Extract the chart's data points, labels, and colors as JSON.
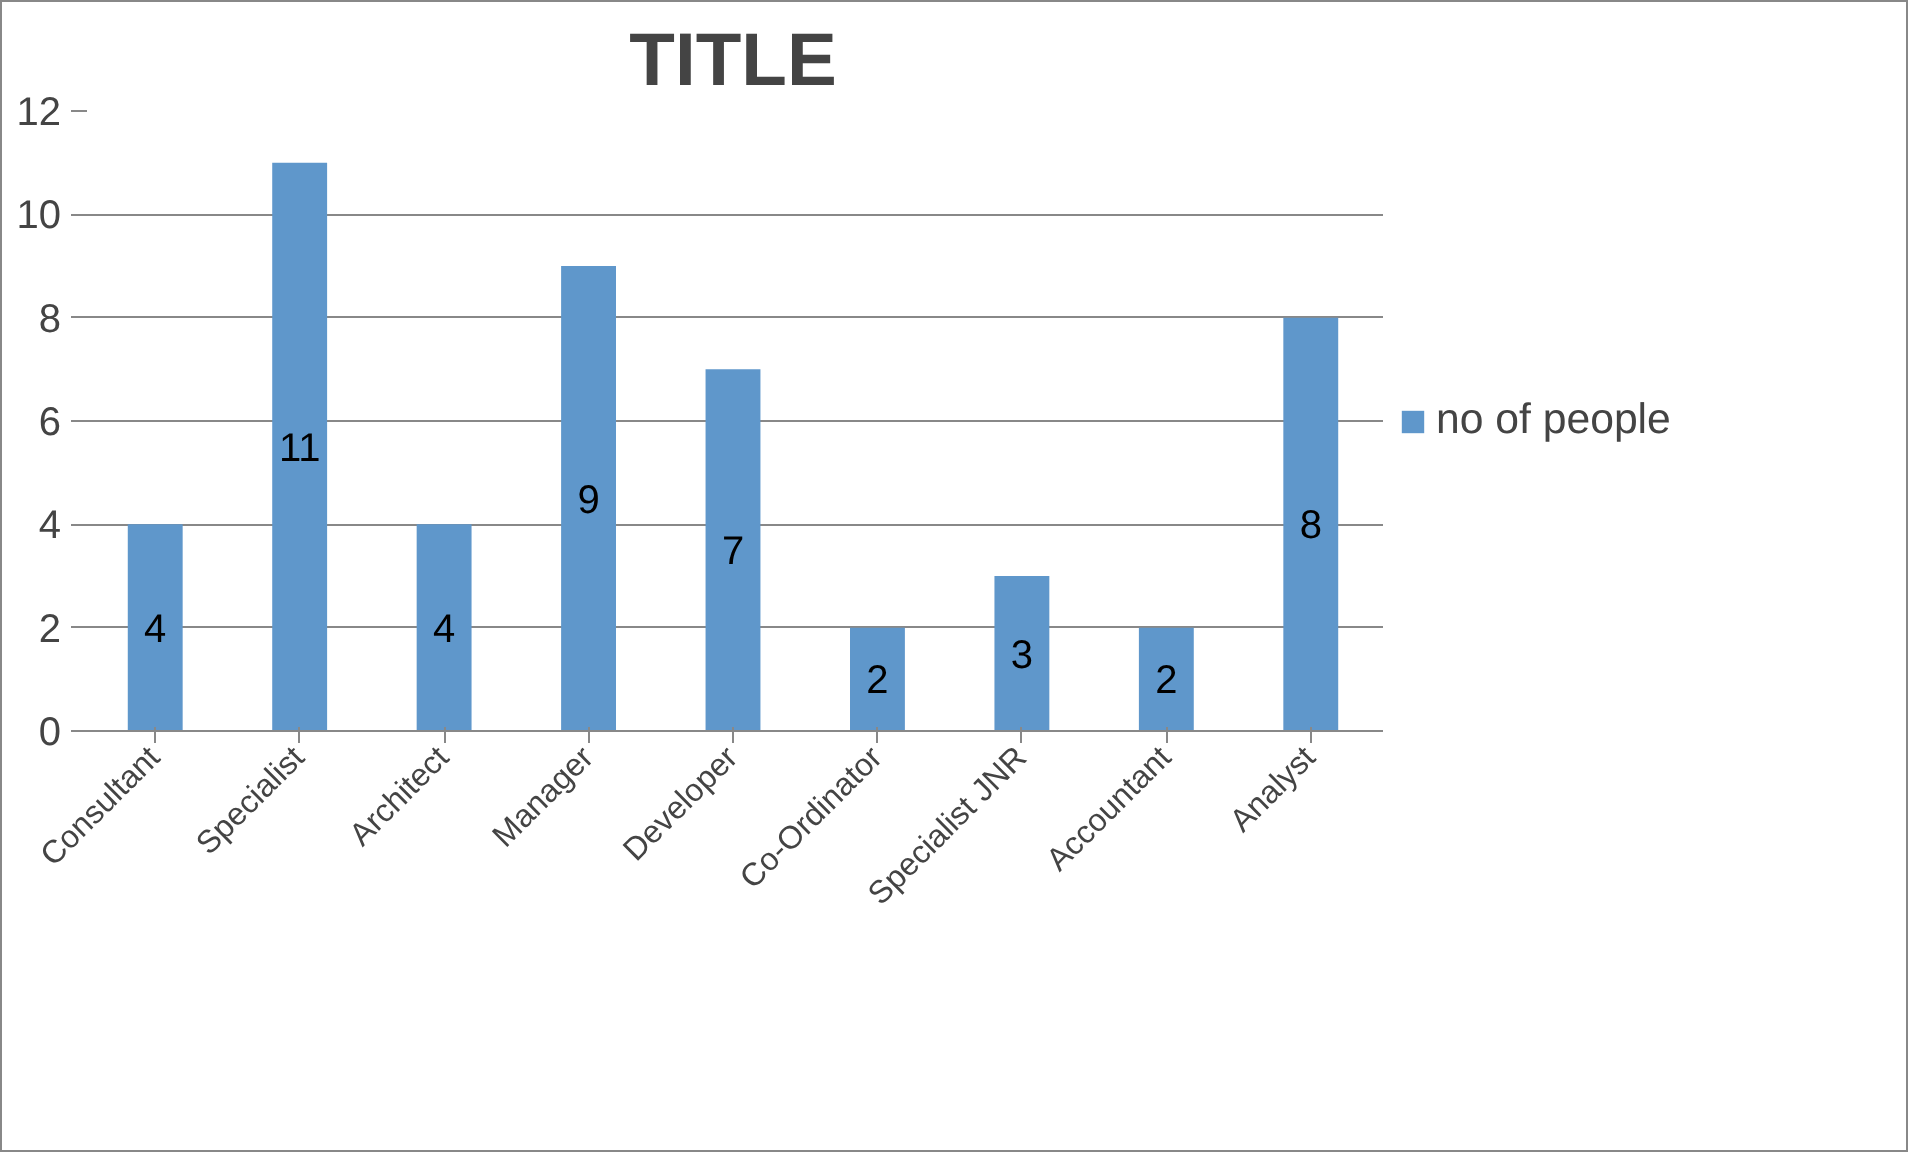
{
  "chart_data": {
    "type": "bar",
    "title": "TITLE",
    "categories": [
      "Consultant",
      "Specialist",
      "Architect",
      "Manager",
      "Developer",
      "Co-Ordinator",
      "Specialist JNR",
      "Accountant",
      "Analyst"
    ],
    "series": [
      {
        "name": "no of people",
        "color": "#5f97cb",
        "values": [
          4,
          11,
          4,
          9,
          7,
          2,
          3,
          2,
          8
        ]
      }
    ],
    "ylim": [
      0,
      12
    ],
    "yticks": [
      0,
      2,
      4,
      6,
      8,
      10,
      12
    ],
    "grid": "y",
    "legend": "right",
    "data_labels": true
  }
}
